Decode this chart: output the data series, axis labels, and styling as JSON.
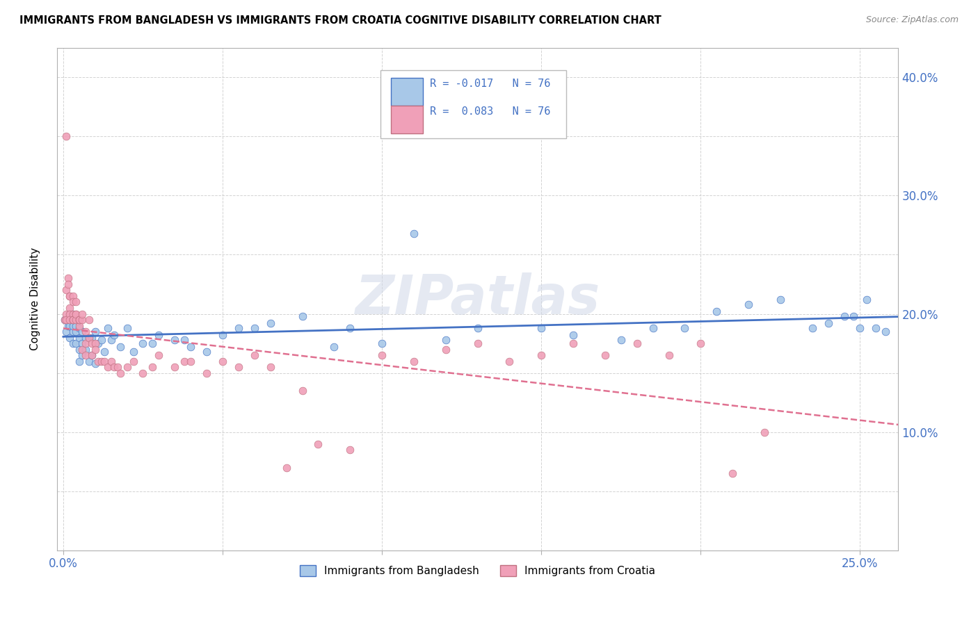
{
  "title": "IMMIGRANTS FROM BANGLADESH VS IMMIGRANTS FROM CROATIA COGNITIVE DISABILITY CORRELATION CHART",
  "source": "Source: ZipAtlas.com",
  "ylabel": "Cognitive Disability",
  "xlim": [
    -0.002,
    0.262
  ],
  "ylim": [
    0.0,
    0.425
  ],
  "color_bangladesh": "#a8c8e8",
  "color_croatia": "#f0a0b8",
  "color_line_bangladesh": "#4472c4",
  "color_line_croatia": "#e07090",
  "watermark": "ZIPatlas",
  "bangladesh_x": [
    0.0005,
    0.001,
    0.001,
    0.0015,
    0.002,
    0.002,
    0.002,
    0.002,
    0.003,
    0.003,
    0.003,
    0.003,
    0.003,
    0.004,
    0.004,
    0.004,
    0.004,
    0.005,
    0.005,
    0.005,
    0.005,
    0.005,
    0.006,
    0.006,
    0.006,
    0.007,
    0.007,
    0.008,
    0.008,
    0.009,
    0.009,
    0.01,
    0.01,
    0.011,
    0.012,
    0.013,
    0.014,
    0.015,
    0.016,
    0.018,
    0.02,
    0.022,
    0.025,
    0.028,
    0.03,
    0.035,
    0.038,
    0.04,
    0.045,
    0.05,
    0.055,
    0.06,
    0.065,
    0.075,
    0.085,
    0.09,
    0.1,
    0.11,
    0.12,
    0.13,
    0.15,
    0.16,
    0.175,
    0.185,
    0.195,
    0.205,
    0.215,
    0.225,
    0.235,
    0.24,
    0.245,
    0.248,
    0.25,
    0.252,
    0.255,
    0.258
  ],
  "bangladesh_y": [
    0.195,
    0.185,
    0.195,
    0.19,
    0.18,
    0.19,
    0.195,
    0.2,
    0.175,
    0.185,
    0.19,
    0.195,
    0.2,
    0.175,
    0.185,
    0.19,
    0.195,
    0.16,
    0.17,
    0.18,
    0.188,
    0.195,
    0.165,
    0.175,
    0.185,
    0.17,
    0.18,
    0.16,
    0.18,
    0.165,
    0.18,
    0.158,
    0.185,
    0.175,
    0.178,
    0.168,
    0.188,
    0.178,
    0.182,
    0.172,
    0.188,
    0.168,
    0.175,
    0.175,
    0.182,
    0.178,
    0.178,
    0.172,
    0.168,
    0.182,
    0.188,
    0.188,
    0.192,
    0.198,
    0.172,
    0.188,
    0.175,
    0.268,
    0.178,
    0.188,
    0.188,
    0.182,
    0.178,
    0.188,
    0.188,
    0.202,
    0.208,
    0.212,
    0.188,
    0.192,
    0.198,
    0.198,
    0.188,
    0.212,
    0.188,
    0.185
  ],
  "croatia_x": [
    0.0005,
    0.001,
    0.001,
    0.001,
    0.001,
    0.0015,
    0.0015,
    0.002,
    0.002,
    0.002,
    0.002,
    0.002,
    0.003,
    0.003,
    0.003,
    0.003,
    0.003,
    0.003,
    0.004,
    0.004,
    0.004,
    0.004,
    0.005,
    0.005,
    0.005,
    0.005,
    0.006,
    0.006,
    0.006,
    0.007,
    0.007,
    0.007,
    0.008,
    0.008,
    0.009,
    0.009,
    0.01,
    0.01,
    0.011,
    0.012,
    0.013,
    0.014,
    0.015,
    0.016,
    0.017,
    0.018,
    0.02,
    0.022,
    0.025,
    0.028,
    0.03,
    0.035,
    0.038,
    0.04,
    0.045,
    0.05,
    0.055,
    0.06,
    0.065,
    0.07,
    0.075,
    0.08,
    0.09,
    0.1,
    0.11,
    0.12,
    0.13,
    0.14,
    0.15,
    0.16,
    0.17,
    0.18,
    0.19,
    0.2,
    0.21,
    0.22
  ],
  "croatia_y": [
    0.195,
    0.35,
    0.22,
    0.2,
    0.195,
    0.23,
    0.225,
    0.215,
    0.205,
    0.2,
    0.195,
    0.215,
    0.2,
    0.195,
    0.195,
    0.215,
    0.21,
    0.195,
    0.2,
    0.195,
    0.21,
    0.2,
    0.195,
    0.19,
    0.195,
    0.195,
    0.195,
    0.2,
    0.17,
    0.185,
    0.175,
    0.165,
    0.18,
    0.195,
    0.165,
    0.175,
    0.175,
    0.17,
    0.16,
    0.16,
    0.16,
    0.155,
    0.16,
    0.155,
    0.155,
    0.15,
    0.155,
    0.16,
    0.15,
    0.155,
    0.165,
    0.155,
    0.16,
    0.16,
    0.15,
    0.16,
    0.155,
    0.165,
    0.155,
    0.07,
    0.135,
    0.09,
    0.085,
    0.165,
    0.16,
    0.17,
    0.175,
    0.16,
    0.165,
    0.175,
    0.165,
    0.175,
    0.165,
    0.175,
    0.065,
    0.1
  ],
  "r_bangladesh": -0.017,
  "r_croatia": 0.083,
  "n": 76
}
